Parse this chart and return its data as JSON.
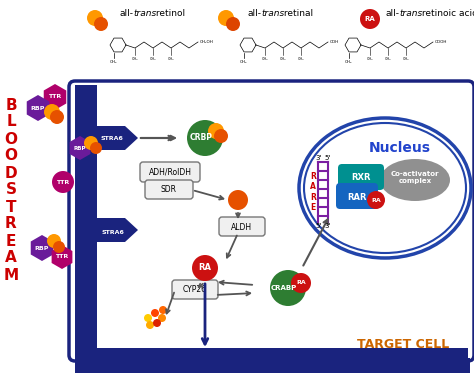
{
  "bg_color": "#ffffff",
  "bloodstream_text": [
    "B",
    "L",
    "O",
    "O",
    "D",
    "S",
    "T",
    "R",
    "E",
    "A",
    "M"
  ],
  "target_cell_text": "TARGET CELL",
  "nucleus_text": "Nucleus",
  "colors": {
    "dark_blue": "#1a237e",
    "cell_border": "#1a237e",
    "nucleus_border": "#2244aa",
    "green": "#2e7d32",
    "orange": "#e65100",
    "orange_light": "#ff9800",
    "red": "#cc1111",
    "purple": "#6a1b9a",
    "magenta": "#b0006a",
    "teal": "#008080",
    "blue_rar": "#1565c0",
    "gray_co": "#909090",
    "arrow_dark": "#555555",
    "rare_color": "#cc0000",
    "text_red": "#cc0000",
    "text_orange": "#cc6600"
  }
}
